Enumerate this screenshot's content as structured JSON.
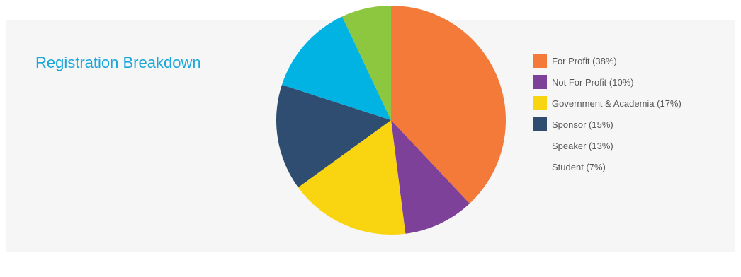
{
  "chart_data": {
    "type": "pie",
    "title": "Registration Breakdown",
    "legend_position": "right",
    "slices": [
      {
        "label": "For Profit (38%)",
        "value": 38,
        "color": "#f47a3a",
        "legend_swatch": true
      },
      {
        "label": "Not For Profit (10%)",
        "value": 10,
        "color": "#7d4199",
        "legend_swatch": true
      },
      {
        "label": "Government & Academia (17%)",
        "value": 17,
        "color": "#f9d511",
        "legend_swatch": true
      },
      {
        "label": "Sponsor (15%)",
        "value": 15,
        "color": "#2e4d70",
        "legend_swatch": true
      },
      {
        "label": "Speaker (13%)",
        "value": 13,
        "color": "#00b3e3",
        "legend_swatch": false
      },
      {
        "label": "Student (7%)",
        "value": 7,
        "color": "#8dc63f",
        "legend_swatch": false
      }
    ]
  }
}
